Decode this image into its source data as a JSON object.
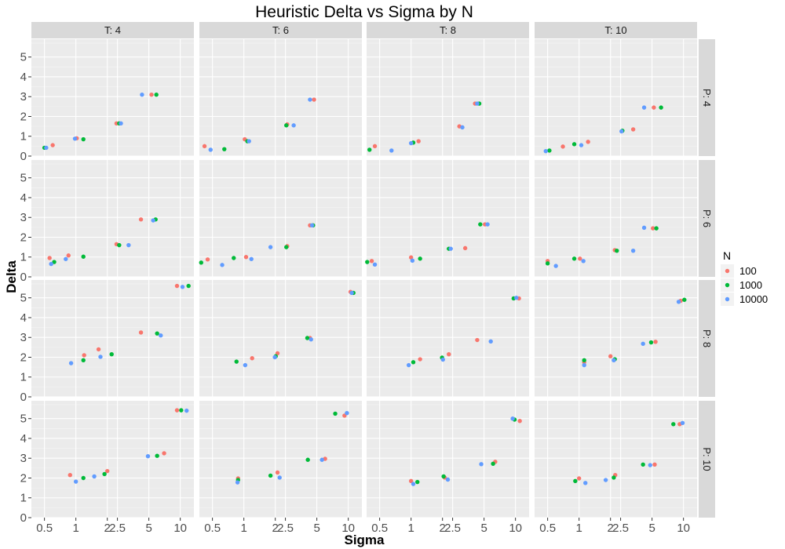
{
  "chart_data": {
    "type": "scatter",
    "title": "Heuristic Delta vs Sigma by N",
    "xlabel": "Sigma",
    "ylabel": "Delta",
    "x_scale": "log",
    "x_ticks": [
      0.5,
      1,
      2,
      2.5,
      5,
      10
    ],
    "x_tick_labels": [
      "0.5",
      "1",
      "2",
      "2.5",
      "5",
      "10"
    ],
    "y_ticks": [
      0,
      1,
      2,
      3,
      4,
      5
    ],
    "y_tick_labels": [
      "0",
      "1",
      "2",
      "3",
      "4",
      "5"
    ],
    "xlim": [
      0.375,
      13.5
    ],
    "ylim": [
      0,
      5.9
    ],
    "grid": true,
    "legend_title": "N",
    "legend_position": "right",
    "col_facets": [
      "T: 4",
      "T: 6",
      "T: 8",
      "T: 10"
    ],
    "row_facets": [
      "P: 4",
      "P: 6",
      "P: 8",
      "P: 10"
    ],
    "series": [
      {
        "name": "100",
        "color": "#F8766D"
      },
      {
        "name": "1000",
        "color": "#00BA38"
      },
      {
        "name": "10000",
        "color": "#619CFF"
      }
    ],
    "panels": [
      {
        "row": 0,
        "col": 0,
        "points": [
          [
            0.6,
            0.55,
            0
          ],
          [
            1.02,
            0.9,
            0
          ],
          [
            2.45,
            1.65,
            0
          ],
          [
            5.3,
            3.1,
            0
          ],
          [
            0.5,
            0.42,
            1
          ],
          [
            1.18,
            0.85,
            1
          ],
          [
            2.6,
            1.65,
            1
          ],
          [
            5.9,
            3.1,
            1
          ],
          [
            0.52,
            0.42,
            2
          ],
          [
            0.98,
            0.88,
            2
          ],
          [
            2.7,
            1.65,
            2
          ],
          [
            4.3,
            3.1,
            2
          ]
        ]
      },
      {
        "row": 0,
        "col": 1,
        "points": [
          [
            0.42,
            0.5,
            0
          ],
          [
            1.02,
            0.85,
            0
          ],
          [
            2.6,
            1.6,
            0
          ],
          [
            4.7,
            2.85,
            0
          ],
          [
            0.65,
            0.35,
            1
          ],
          [
            1.08,
            0.75,
            1
          ],
          [
            2.55,
            1.55,
            1
          ],
          [
            0.48,
            0.32,
            2
          ],
          [
            1.12,
            0.75,
            2
          ],
          [
            3.0,
            1.55,
            2
          ],
          [
            4.3,
            2.85,
            2
          ]
        ]
      },
      {
        "row": 0,
        "col": 2,
        "points": [
          [
            0.45,
            0.5,
            0
          ],
          [
            1.18,
            0.75,
            0
          ],
          [
            2.9,
            1.5,
            0
          ],
          [
            4.1,
            2.65,
            0
          ],
          [
            0.4,
            0.32,
            1
          ],
          [
            1.05,
            0.68,
            1
          ],
          [
            4.5,
            2.65,
            1
          ],
          [
            0.65,
            0.28,
            2
          ],
          [
            1.0,
            0.65,
            2
          ],
          [
            3.1,
            1.45,
            2
          ],
          [
            4.3,
            2.65,
            2
          ]
        ]
      },
      {
        "row": 0,
        "col": 3,
        "points": [
          [
            0.7,
            0.48,
            0
          ],
          [
            1.22,
            0.72,
            0
          ],
          [
            3.3,
            1.35,
            0
          ],
          [
            5.2,
            2.45,
            0
          ],
          [
            0.52,
            0.28,
            1
          ],
          [
            0.9,
            0.6,
            1
          ],
          [
            2.6,
            1.28,
            1
          ],
          [
            6.1,
            2.45,
            1
          ],
          [
            0.48,
            0.25,
            2
          ],
          [
            1.05,
            0.55,
            2
          ],
          [
            2.55,
            1.25,
            2
          ],
          [
            4.2,
            2.45,
            2
          ]
        ]
      },
      {
        "row": 1,
        "col": 0,
        "points": [
          [
            0.56,
            0.95,
            0
          ],
          [
            0.85,
            1.08,
            0
          ],
          [
            2.45,
            1.65,
            0
          ],
          [
            4.2,
            2.9,
            0
          ],
          [
            0.62,
            0.75,
            1
          ],
          [
            1.18,
            1.02,
            1
          ],
          [
            2.6,
            1.6,
            1
          ],
          [
            5.8,
            2.9,
            1
          ],
          [
            0.58,
            0.65,
            2
          ],
          [
            0.8,
            0.9,
            2
          ],
          [
            3.2,
            1.6,
            2
          ],
          [
            5.5,
            2.85,
            2
          ]
        ]
      },
      {
        "row": 1,
        "col": 1,
        "points": [
          [
            0.45,
            0.88,
            0
          ],
          [
            1.05,
            1.0,
            0
          ],
          [
            2.6,
            1.55,
            0
          ],
          [
            4.3,
            2.6,
            0
          ],
          [
            0.39,
            0.72,
            1
          ],
          [
            0.8,
            0.95,
            1
          ],
          [
            2.55,
            1.5,
            1
          ],
          [
            4.6,
            2.6,
            1
          ],
          [
            0.62,
            0.6,
            2
          ],
          [
            1.18,
            0.9,
            2
          ],
          [
            1.8,
            1.5,
            2
          ],
          [
            4.5,
            2.6,
            2
          ]
        ]
      },
      {
        "row": 1,
        "col": 2,
        "points": [
          [
            0.42,
            0.8,
            0
          ],
          [
            1.0,
            0.98,
            0
          ],
          [
            3.3,
            1.45,
            0
          ],
          [
            5.1,
            2.65,
            0
          ],
          [
            0.38,
            0.75,
            1
          ],
          [
            1.22,
            0.92,
            1
          ],
          [
            2.3,
            1.42,
            1
          ],
          [
            4.6,
            2.65,
            1
          ],
          [
            0.45,
            0.62,
            2
          ],
          [
            1.03,
            0.82,
            2
          ],
          [
            2.4,
            1.42,
            2
          ],
          [
            5.4,
            2.65,
            2
          ]
        ]
      },
      {
        "row": 1,
        "col": 3,
        "points": [
          [
            0.5,
            0.8,
            0
          ],
          [
            1.02,
            0.92,
            0
          ],
          [
            2.2,
            1.35,
            0
          ],
          [
            5.1,
            2.45,
            0
          ],
          [
            0.5,
            0.68,
            1
          ],
          [
            0.9,
            0.92,
            1
          ],
          [
            2.3,
            1.32,
            1
          ],
          [
            5.5,
            2.45,
            1
          ],
          [
            0.6,
            0.55,
            2
          ],
          [
            1.1,
            0.8,
            2
          ],
          [
            3.3,
            1.32,
            2
          ],
          [
            4.2,
            2.48,
            2
          ]
        ]
      },
      {
        "row": 2,
        "col": 0,
        "points": [
          [
            1.2,
            2.1,
            0
          ],
          [
            1.65,
            2.4,
            0
          ],
          [
            4.2,
            3.25,
            0
          ],
          [
            9.3,
            5.6,
            0
          ],
          [
            1.18,
            1.85,
            1
          ],
          [
            2.2,
            2.15,
            1
          ],
          [
            6.0,
            3.2,
            1
          ],
          [
            12.0,
            5.6,
            1
          ],
          [
            0.9,
            1.7,
            2
          ],
          [
            1.72,
            2.02,
            2
          ],
          [
            6.5,
            3.1,
            2
          ],
          [
            10.5,
            5.55,
            2
          ]
        ]
      },
      {
        "row": 2,
        "col": 1,
        "points": [
          [
            1.2,
            1.95,
            0
          ],
          [
            2.1,
            2.2,
            0
          ],
          [
            4.3,
            2.97,
            0
          ],
          [
            10.5,
            5.3,
            0
          ],
          [
            0.85,
            1.78,
            1
          ],
          [
            2.02,
            2.05,
            1
          ],
          [
            4.05,
            2.97,
            1
          ],
          [
            11.2,
            5.25,
            1
          ],
          [
            1.03,
            1.6,
            2
          ],
          [
            1.98,
            2.0,
            2
          ],
          [
            4.4,
            2.9,
            2
          ],
          [
            10.8,
            5.25,
            2
          ]
        ]
      },
      {
        "row": 2,
        "col": 2,
        "points": [
          [
            1.22,
            1.9,
            0
          ],
          [
            2.3,
            2.15,
            0
          ],
          [
            4.3,
            2.87,
            0
          ],
          [
            10.8,
            4.97,
            0
          ],
          [
            1.05,
            1.75,
            1
          ],
          [
            1.98,
            1.98,
            1
          ],
          [
            9.6,
            4.97,
            1
          ],
          [
            0.95,
            1.6,
            2
          ],
          [
            2.02,
            1.88,
            2
          ],
          [
            5.8,
            2.8,
            2
          ],
          [
            10.2,
            5.0,
            2
          ]
        ]
      },
      {
        "row": 2,
        "col": 3,
        "points": [
          [
            1.12,
            1.75,
            0
          ],
          [
            2.0,
            2.05,
            0
          ],
          [
            5.4,
            2.78,
            0
          ],
          [
            9.4,
            4.85,
            0
          ],
          [
            1.12,
            1.85,
            1
          ],
          [
            2.2,
            1.9,
            1
          ],
          [
            4.9,
            2.75,
            1
          ],
          [
            10.2,
            4.9,
            1
          ],
          [
            1.12,
            1.6,
            2
          ],
          [
            2.15,
            1.85,
            2
          ],
          [
            4.1,
            2.68,
            2
          ],
          [
            9.0,
            4.8,
            2
          ]
        ]
      },
      {
        "row": 3,
        "col": 0,
        "points": [
          [
            0.88,
            2.15,
            0
          ],
          [
            2.0,
            2.35,
            0
          ],
          [
            7.0,
            3.25,
            0
          ],
          [
            9.3,
            5.42,
            0
          ],
          [
            1.18,
            2.0,
            1
          ],
          [
            1.88,
            2.2,
            1
          ],
          [
            6.0,
            3.12,
            1
          ],
          [
            10.2,
            5.42,
            1
          ],
          [
            1.0,
            1.82,
            2
          ],
          [
            1.5,
            2.08,
            2
          ],
          [
            4.9,
            3.1,
            2
          ],
          [
            11.5,
            5.4,
            2
          ]
        ]
      },
      {
        "row": 3,
        "col": 1,
        "points": [
          [
            0.88,
            1.98,
            0
          ],
          [
            2.1,
            2.28,
            0
          ],
          [
            6.0,
            2.97,
            0
          ],
          [
            9.2,
            5.15,
            0
          ],
          [
            0.88,
            1.9,
            1
          ],
          [
            1.8,
            2.12,
            1
          ],
          [
            4.1,
            2.92,
            1
          ],
          [
            7.5,
            5.25,
            1
          ],
          [
            0.87,
            1.78,
            2
          ],
          [
            2.2,
            2.02,
            2
          ],
          [
            5.6,
            2.92,
            2
          ],
          [
            9.7,
            5.28,
            2
          ]
        ]
      },
      {
        "row": 3,
        "col": 2,
        "points": [
          [
            1.0,
            1.85,
            0
          ],
          [
            2.1,
            2.02,
            0
          ],
          [
            6.4,
            2.82,
            0
          ],
          [
            11.0,
            4.88,
            0
          ],
          [
            1.15,
            1.8,
            1
          ],
          [
            2.05,
            2.08,
            1
          ],
          [
            6.1,
            2.72,
            1
          ],
          [
            9.8,
            4.95,
            1
          ],
          [
            1.05,
            1.7,
            2
          ],
          [
            2.25,
            1.92,
            2
          ],
          [
            4.7,
            2.7,
            2
          ],
          [
            9.4,
            5.0,
            2
          ]
        ]
      },
      {
        "row": 3,
        "col": 3,
        "points": [
          [
            1.0,
            1.98,
            0
          ],
          [
            2.22,
            2.15,
            0
          ],
          [
            5.3,
            2.68,
            0
          ],
          [
            9.2,
            4.72,
            0
          ],
          [
            0.92,
            1.85,
            1
          ],
          [
            2.15,
            2.02,
            1
          ],
          [
            4.1,
            2.68,
            1
          ],
          [
            8.0,
            4.72,
            1
          ],
          [
            1.15,
            1.75,
            2
          ],
          [
            1.8,
            1.9,
            2
          ],
          [
            4.8,
            2.65,
            2
          ],
          [
            9.8,
            4.78,
            2
          ]
        ]
      }
    ]
  }
}
